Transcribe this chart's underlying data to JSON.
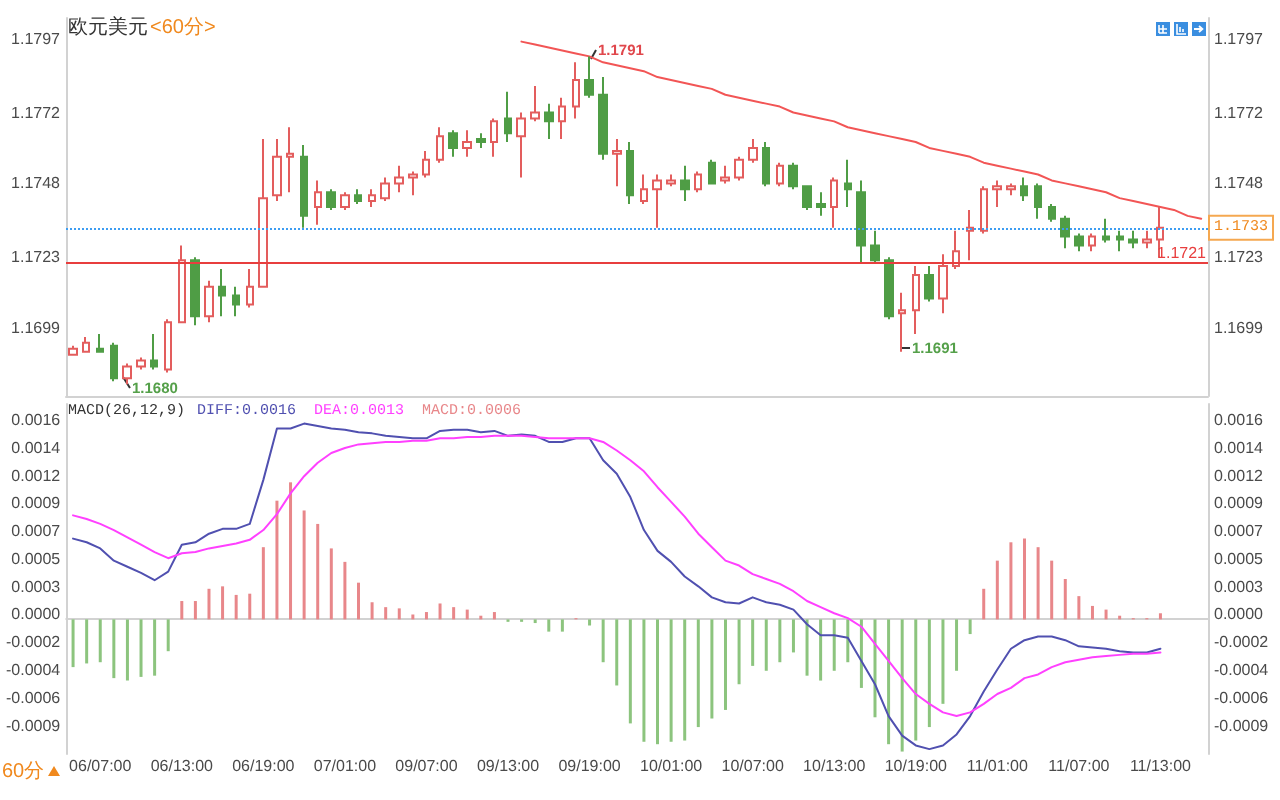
{
  "chart_data": [
    {
      "type": "candlestick",
      "title": "欧元美元",
      "subtitle": "<60分>",
      "categories": [
        null,
        null,
        null,
        null,
        null,
        null,
        null,
        null,
        null,
        null,
        null,
        null,
        null,
        null,
        null,
        null,
        null,
        null,
        null,
        null,
        null,
        null,
        null,
        null,
        null,
        null,
        null,
        null,
        null,
        null,
        null,
        null,
        null,
        null,
        null,
        null,
        null,
        null,
        null,
        null,
        null,
        null,
        null,
        null,
        null,
        null,
        null,
        null,
        null,
        null,
        null,
        null,
        null,
        null,
        null,
        null,
        null,
        null,
        null,
        null,
        null,
        null,
        null,
        null,
        null,
        null,
        null,
        null,
        null,
        null,
        null,
        null,
        null,
        null,
        null,
        null,
        null,
        null,
        null,
        null,
        null,
        null,
        null,
        null
      ],
      "ohlc": [
        [
          1.169,
          1.1693,
          1.169,
          1.1692
        ],
        [
          1.1691,
          1.1696,
          1.1691,
          1.1694
        ],
        [
          1.1692,
          1.1697,
          1.1691,
          1.1691
        ],
        [
          1.1693,
          1.1694,
          1.1681,
          1.1682
        ],
        [
          1.1682,
          1.1687,
          1.168,
          1.1686
        ],
        [
          1.1686,
          1.1689,
          1.1685,
          1.1688
        ],
        [
          1.1688,
          1.1697,
          1.1685,
          1.1686
        ],
        [
          1.1685,
          1.1702,
          1.1684,
          1.1701
        ],
        [
          1.1701,
          1.1727,
          1.1701,
          1.1722
        ],
        [
          1.1722,
          1.1723,
          1.17,
          1.1703
        ],
        [
          1.1703,
          1.1715,
          1.1701,
          1.1713
        ],
        [
          1.1713,
          1.1719,
          1.1703,
          1.171
        ],
        [
          1.171,
          1.1713,
          1.1703,
          1.1707
        ],
        [
          1.1707,
          1.1719,
          1.1706,
          1.1713
        ],
        [
          1.1713,
          1.1763,
          1.1713,
          1.1743
        ],
        [
          1.1744,
          1.1763,
          1.1742,
          1.1757
        ],
        [
          1.1757,
          1.1767,
          1.1745,
          1.1758
        ],
        [
          1.1757,
          1.1761,
          1.1733,
          1.1737
        ],
        [
          1.174,
          1.1749,
          1.1734,
          1.1745
        ],
        [
          1.1745,
          1.1746,
          1.1739,
          1.174
        ],
        [
          1.174,
          1.1745,
          1.1739,
          1.1744
        ],
        [
          1.1744,
          1.1746,
          1.1741,
          1.1742
        ],
        [
          1.1742,
          1.1746,
          1.174,
          1.1744
        ],
        [
          1.1743,
          1.175,
          1.1742,
          1.1748
        ],
        [
          1.1748,
          1.1754,
          1.1745,
          1.175
        ],
        [
          1.175,
          1.1752,
          1.1744,
          1.1751
        ],
        [
          1.1751,
          1.1759,
          1.175,
          1.1756
        ],
        [
          1.1756,
          1.1767,
          1.1755,
          1.1764
        ],
        [
          1.1765,
          1.1766,
          1.1757,
          1.176
        ],
        [
          1.176,
          1.1766,
          1.1757,
          1.1762
        ],
        [
          1.1763,
          1.1765,
          1.176,
          1.1762
        ],
        [
          1.1762,
          1.177,
          1.1757,
          1.1769
        ],
        [
          1.177,
          1.1779,
          1.1762,
          1.1765
        ],
        [
          1.1764,
          1.1772,
          1.175,
          1.177
        ],
        [
          1.177,
          1.1781,
          1.1769,
          1.1772
        ],
        [
          1.1772,
          1.1775,
          1.1763,
          1.1769
        ],
        [
          1.1769,
          1.1777,
          1.1763,
          1.1774
        ],
        [
          1.1774,
          1.1789,
          1.177,
          1.1783
        ],
        [
          1.1783,
          1.1791,
          1.1777,
          1.1778
        ],
        [
          1.1778,
          1.1784,
          1.1756,
          1.1758
        ],
        [
          1.1758,
          1.1763,
          1.1747,
          1.1759
        ],
        [
          1.1759,
          1.1762,
          1.1741,
          1.1744
        ],
        [
          1.1742,
          1.1751,
          1.1741,
          1.1746
        ],
        [
          1.1746,
          1.1751,
          1.1733,
          1.1749
        ],
        [
          1.1748,
          1.1751,
          1.1747,
          1.1749
        ],
        [
          1.1749,
          1.1754,
          1.1742,
          1.1746
        ],
        [
          1.1746,
          1.1752,
          1.1745,
          1.1751
        ],
        [
          1.1755,
          1.1756,
          1.1748,
          1.1748
        ],
        [
          1.1749,
          1.1754,
          1.1748,
          1.175
        ],
        [
          1.175,
          1.1757,
          1.1749,
          1.1756
        ],
        [
          1.1756,
          1.1763,
          1.1755,
          1.176
        ],
        [
          1.176,
          1.1762,
          1.1747,
          1.1748
        ],
        [
          1.1748,
          1.1755,
          1.1747,
          1.1754
        ],
        [
          1.1754,
          1.1755,
          1.1746,
          1.1747
        ],
        [
          1.1747,
          1.1747,
          1.1739,
          1.174
        ],
        [
          1.1741,
          1.1745,
          1.1737,
          1.174
        ],
        [
          1.174,
          1.175,
          1.1733,
          1.1749
        ],
        [
          1.1748,
          1.1756,
          1.174,
          1.1746
        ],
        [
          1.1745,
          1.1749,
          1.1721,
          1.1727
        ],
        [
          1.1727,
          1.1732,
          1.1721,
          1.1722
        ],
        [
          1.1722,
          1.1723,
          1.1702,
          1.1703
        ],
        [
          1.1704,
          1.1711,
          1.1691,
          1.1705
        ],
        [
          1.1705,
          1.172,
          1.1697,
          1.1717
        ],
        [
          1.1717,
          1.172,
          1.1708,
          1.1709
        ],
        [
          1.1709,
          1.1724,
          1.1704,
          1.172
        ],
        [
          1.172,
          1.1732,
          1.1719,
          1.1725
        ],
        [
          1.1732,
          1.1739,
          1.1722,
          1.1733
        ],
        [
          1.1732,
          1.1747,
          1.1731,
          1.1746
        ],
        [
          1.1746,
          1.1749,
          1.174,
          1.1747
        ],
        [
          1.1746,
          1.1748,
          1.1744,
          1.1747
        ],
        [
          1.1747,
          1.175,
          1.1742,
          1.1744
        ],
        [
          1.1747,
          1.1748,
          1.1736,
          1.174
        ],
        [
          1.174,
          1.1741,
          1.1735,
          1.1736
        ],
        [
          1.1736,
          1.1737,
          1.1726,
          1.173
        ],
        [
          1.173,
          1.1731,
          1.1725,
          1.1727
        ],
        [
          1.1727,
          1.1731,
          1.1725,
          1.173
        ],
        [
          1.173,
          1.1736,
          1.1728,
          1.1729
        ],
        [
          1.173,
          1.1732,
          1.1725,
          1.1729
        ],
        [
          1.1729,
          1.1732,
          1.1726,
          1.1728
        ],
        [
          1.1728,
          1.1732,
          1.1726,
          1.1729
        ],
        [
          1.1729,
          1.174,
          1.1723,
          1.1733
        ],
        null,
        null,
        null
      ],
      "colors": [
        "#e35d5d",
        "#e35d5d",
        "#4f9d45",
        "#4f9d45",
        "#e35d5d",
        "#e35d5d",
        "#4f9d45",
        "#e35d5d",
        "#e35d5d",
        "#4f9d45",
        "#e35d5d",
        "#4f9d45",
        "#4f9d45",
        "#e35d5d",
        "#e35d5d",
        "#e35d5d",
        "#e35d5d",
        "#4f9d45",
        "#e35d5d",
        "#4f9d45",
        "#e35d5d",
        "#4f9d45",
        "#e35d5d",
        "#e35d5d",
        "#e35d5d",
        "#e35d5d",
        "#e35d5d",
        "#e35d5d",
        "#4f9d45",
        "#e35d5d",
        "#4f9d45",
        "#e35d5d",
        "#4f9d45",
        "#e35d5d",
        "#e35d5d",
        "#4f9d45",
        "#e35d5d",
        "#e35d5d",
        "#4f9d45",
        "#4f9d45",
        "#e35d5d",
        "#4f9d45",
        "#e35d5d",
        "#e35d5d",
        "#e35d5d",
        "#4f9d45",
        "#e35d5d",
        "#4f9d45",
        "#e35d5d",
        "#e35d5d",
        "#e35d5d",
        "#4f9d45",
        "#e35d5d",
        "#4f9d45",
        "#4f9d45",
        "#4f9d45",
        "#e35d5d",
        "#4f9d45",
        "#4f9d45",
        "#4f9d45",
        "#4f9d45",
        "#e35d5d",
        "#e35d5d",
        "#4f9d45",
        "#e35d5d",
        "#e35d5d",
        "#e35d5d",
        "#e35d5d",
        "#e35d5d",
        "#e35d5d",
        "#4f9d45",
        "#4f9d45",
        "#4f9d45",
        "#4f9d45",
        "#4f9d45",
        "#e35d5d",
        "#4f9d45",
        "#4f9d45",
        "#4f9d45",
        "#e35d5d",
        "#e35d5d",
        null,
        null,
        null
      ],
      "series": [
        {
          "type": "line",
          "color": "#f25555",
          "values": [
            null,
            null,
            null,
            null,
            null,
            null,
            null,
            null,
            null,
            null,
            null,
            null,
            null,
            null,
            null,
            null,
            null,
            null,
            null,
            null,
            null,
            null,
            null,
            null,
            null,
            null,
            null,
            null,
            null,
            null,
            null,
            null,
            null,
            1.1796,
            1.1795,
            1.1794,
            1.1793,
            1.1792,
            1.1791,
            1.1789,
            1.1788,
            1.1787,
            1.1786,
            1.1784,
            1.1783,
            1.1782,
            1.1781,
            1.178,
            1.1778,
            1.1777,
            1.1776,
            1.1775,
            1.1774,
            1.1772,
            1.1771,
            1.177,
            1.1769,
            1.1767,
            1.1766,
            1.1765,
            1.1764,
            1.1763,
            1.1762,
            1.176,
            1.1759,
            1.1758,
            1.1757,
            1.1755,
            1.1754,
            1.1753,
            1.1752,
            1.1751,
            1.1749,
            1.1748,
            1.1747,
            1.1746,
            1.1745,
            1.1743,
            1.1742,
            1.1741,
            1.174,
            1.1739,
            1.1737,
            1.1736
          ]
        }
      ],
      "ylim": [
        1.1676,
        1.1804
      ],
      "yticks": [
        1.1699,
        1.1723,
        1.1748,
        1.1772,
        1.1797
      ],
      "y2lim": [
        1.1676,
        1.1804
      ],
      "y2ticks": [
        1.1699,
        1.1723,
        1.1748,
        1.1772,
        1.1797
      ],
      "tick_labels": "y",
      "marker": "none",
      "ref_lines": [
        {
          "axis": "y",
          "value": 1.1733,
          "label": "1.1733",
          "color": "#3d9df2",
          "line_style": "dotted"
        },
        {
          "axis": "y",
          "value": 1.1721,
          "label": "1.1721",
          "color": "#e83e3e",
          "line_style": "solid"
        }
      ],
      "annotations": [
        "1.1791",
        "1.1680",
        "1.1691"
      ]
    },
    {
      "type": "bar",
      "title": "MACD(26,12,9)",
      "categories": [
        null,
        null,
        "06/07:00",
        null,
        null,
        null,
        null,
        null,
        "06/13:00",
        null,
        null,
        null,
        null,
        null,
        "06/19:00",
        null,
        null,
        null,
        null,
        null,
        "07/01:00",
        null,
        null,
        null,
        null,
        null,
        "09/07:00",
        null,
        null,
        null,
        null,
        null,
        "09/13:00",
        null,
        null,
        null,
        null,
        null,
        "09/19:00",
        null,
        null,
        null,
        null,
        null,
        "10/01:00",
        null,
        null,
        null,
        null,
        null,
        "10/07:00",
        null,
        null,
        null,
        null,
        null,
        "10/13:00",
        null,
        null,
        null,
        null,
        null,
        "10/19:00",
        null,
        null,
        null,
        null,
        null,
        "11/01:00",
        null,
        null,
        null,
        null,
        null,
        "11/07:00",
        null,
        null,
        null,
        null,
        null,
        "11/13:00",
        null,
        null,
        null
      ],
      "series": [
        {
          "name": "DIFF:0.0016",
          "type": "line",
          "color": "#5050b0",
          "values": [
            0.00066,
            0.00063,
            0.00058,
            0.00048,
            0.00043,
            0.00038,
            0.00032,
            0.00039,
            0.00061,
            0.00063,
            0.0007,
            0.00074,
            0.00074,
            0.00078,
            0.00114,
            0.00156,
            0.00156,
            0.0016,
            0.00158,
            0.00156,
            0.00155,
            0.00153,
            0.00152,
            0.0015,
            0.00149,
            0.00148,
            0.00148,
            0.00154,
            0.00155,
            0.00155,
            0.00153,
            0.00154,
            0.0015,
            0.00151,
            0.0015,
            0.00145,
            0.00145,
            0.00148,
            0.00148,
            0.0013,
            0.00119,
            0.001,
            0.00073,
            0.00056,
            0.00047,
            0.00035,
            0.00027,
            0.00018,
            0.00014,
            0.00013,
            0.00018,
            0.00014,
            0.00012,
            8e-05,
            -4e-05,
            -0.00013,
            -0.00013,
            -0.00015,
            -0.00034,
            -0.00053,
            -0.00079,
            -0.00095,
            -0.00103,
            -0.00106,
            -0.00103,
            -0.00094,
            -0.00079,
            -0.00059,
            -0.00041,
            -0.00024,
            -0.00017,
            -0.00014,
            -0.00014,
            -0.00017,
            -0.00022,
            -0.00023,
            -0.00024,
            -0.00026,
            -0.00027,
            -0.00027,
            -0.00024,
            null,
            null,
            null
          ]
        },
        {
          "name": "DEA:0.0013",
          "type": "line",
          "color": "#ff40ff",
          "values": [
            0.00085,
            0.00082,
            0.00078,
            0.00073,
            0.00067,
            0.00061,
            0.00055,
            0.0005,
            0.00054,
            0.00055,
            0.00058,
            0.0006,
            0.00062,
            0.00065,
            0.00073,
            0.00086,
            0.00103,
            0.00117,
            0.00128,
            0.00136,
            0.0014,
            0.00143,
            0.00144,
            0.00145,
            0.00145,
            0.00146,
            0.00146,
            0.00148,
            0.00148,
            0.00149,
            0.00149,
            0.0015,
            0.0015,
            0.0015,
            0.00149,
            0.00148,
            0.00148,
            0.00148,
            0.00148,
            0.00145,
            0.00138,
            0.0013,
            0.00121,
            0.00108,
            0.00096,
            0.00084,
            0.0007,
            0.00059,
            0.00048,
            0.00044,
            0.00037,
            0.00033,
            0.00029,
            0.00023,
            0.00015,
            0.0001,
            5e-05,
            1e-05,
            -6e-05,
            -0.0002,
            -0.00034,
            -0.00048,
            -0.00061,
            -0.00069,
            -0.00076,
            -0.00079,
            -0.00076,
            -0.00069,
            -0.00061,
            -0.00056,
            -0.00048,
            -0.00045,
            -0.00039,
            -0.00035,
            -0.00033,
            -0.00031,
            -0.0003,
            -0.00029,
            -0.00028,
            -0.00028,
            -0.00027,
            null,
            null,
            null
          ]
        },
        {
          "name": "MACD:0.0006",
          "color": "#e8878a",
          "values": [
            -0.00039,
            -0.00036,
            -0.00035,
            -0.00048,
            -0.0005,
            -0.00047,
            -0.00046,
            -0.00026,
            0.00015,
            0.00015,
            0.00025,
            0.00027,
            0.0002,
            0.00021,
            0.00059,
            0.00097,
            0.00112,
            0.00089,
            0.00078,
            0.00058,
            0.00047,
            0.0003,
            0.00014,
            0.0001,
            9e-05,
            4e-05,
            6e-05,
            0.00013,
            0.0001,
            8e-05,
            3e-05,
            6e-05,
            -2e-05,
            -2e-05,
            -3e-05,
            -0.0001,
            -0.0001,
            1e-05,
            -5e-05,
            -0.00035,
            -0.00054,
            -0.00085,
            -0.001,
            -0.00102,
            -0.001,
            -0.00099,
            -0.00088,
            -0.00081,
            -0.00074,
            -0.00053,
            -0.00038,
            -0.00042,
            -0.00035,
            -0.00027,
            -0.00046,
            -0.0005,
            -0.00042,
            -0.00035,
            -0.00056,
            -0.0008,
            -0.00102,
            -0.00108,
            -0.00099,
            -0.00088,
            -0.00069,
            -0.00042,
            -0.00012,
            0.00025,
            0.00048,
            0.00063,
            0.00066,
            0.00059,
            0.00048,
            0.00033,
            0.00019,
            0.00011,
            8e-05,
            3e-05,
            1e-05,
            1e-05,
            5e-05,
            null,
            null,
            null
          ],
          "colors": [
            "#8cc47e",
            "#8cc47e",
            "#8cc47e",
            "#8cc47e",
            "#8cc47e",
            "#8cc47e",
            "#8cc47e",
            "#8cc47e",
            "#e8878a",
            "#e8878a",
            "#e8878a",
            "#e8878a",
            "#e8878a",
            "#e8878a",
            "#e8878a",
            "#e8878a",
            "#e8878a",
            "#e8878a",
            "#e8878a",
            "#e8878a",
            "#e8878a",
            "#e8878a",
            "#e8878a",
            "#e8878a",
            "#e8878a",
            "#e8878a",
            "#e8878a",
            "#e8878a",
            "#e8878a",
            "#e8878a",
            "#e8878a",
            "#e8878a",
            "#8cc47e",
            "#8cc47e",
            "#8cc47e",
            "#8cc47e",
            "#8cc47e",
            "#e8878a",
            "#8cc47e",
            "#8cc47e",
            "#8cc47e",
            "#8cc47e",
            "#8cc47e",
            "#8cc47e",
            "#8cc47e",
            "#8cc47e",
            "#8cc47e",
            "#8cc47e",
            "#8cc47e",
            "#8cc47e",
            "#8cc47e",
            "#8cc47e",
            "#8cc47e",
            "#8cc47e",
            "#8cc47e",
            "#8cc47e",
            "#8cc47e",
            "#8cc47e",
            "#8cc47e",
            "#8cc47e",
            "#8cc47e",
            "#8cc47e",
            "#8cc47e",
            "#8cc47e",
            "#8cc47e",
            "#8cc47e",
            "#8cc47e",
            "#e8878a",
            "#e8878a",
            "#e8878a",
            "#e8878a",
            "#e8878a",
            "#e8878a",
            "#e8878a",
            "#e8878a",
            "#e8878a",
            "#e8878a",
            "#e8878a",
            "#e8878a",
            "#e8878a",
            "#e8878a",
            null,
            null,
            null
          ]
        }
      ],
      "ylim": [
        -0.0011,
        0.00176
      ],
      "yticks": [
        {
          "value": -0.000868,
          "label": "-0.0009"
        },
        {
          "value": -0.000641,
          "label": "-0.0006"
        },
        {
          "value": -0.000414,
          "label": "-0.0004"
        },
        {
          "value": -0.000187,
          "label": "-0.0002"
        },
        {
          "value": 4e-05,
          "label": "0.0000"
        },
        {
          "value": 0.000267,
          "label": "0.0003"
        },
        {
          "value": 0.000494,
          "label": "0.0005"
        },
        {
          "value": 0.000721,
          "label": "0.0007"
        },
        {
          "value": 0.000948,
          "label": "0.0009"
        },
        {
          "value": 0.001175,
          "label": "0.0012"
        },
        {
          "value": 0.001402,
          "label": "0.0014"
        },
        {
          "value": 0.001629,
          "label": "0.0016"
        }
      ],
      "y2lim": [
        -0.0011,
        0.00176
      ],
      "y2ticks": [
        {
          "value": -0.000868,
          "label": "-0.0009"
        },
        {
          "value": -0.000641,
          "label": "-0.0006"
        },
        {
          "value": -0.000414,
          "label": "-0.0004"
        },
        {
          "value": -0.000187,
          "label": "-0.0002"
        },
        {
          "value": 4e-05,
          "label": "0.0000"
        },
        {
          "value": 0.000267,
          "label": "0.0003"
        },
        {
          "value": 0.000494,
          "label": "0.0005"
        },
        {
          "value": 0.000721,
          "label": "0.0007"
        },
        {
          "value": 0.000948,
          "label": "0.0009"
        },
        {
          "value": 0.001175,
          "label": "0.0012"
        },
        {
          "value": 0.001402,
          "label": "0.0014"
        },
        {
          "value": 0.001629,
          "label": "0.0016"
        }
      ],
      "legend": "top left",
      "marker": "none",
      "annotations": [
        "60分"
      ]
    }
  ]
}
